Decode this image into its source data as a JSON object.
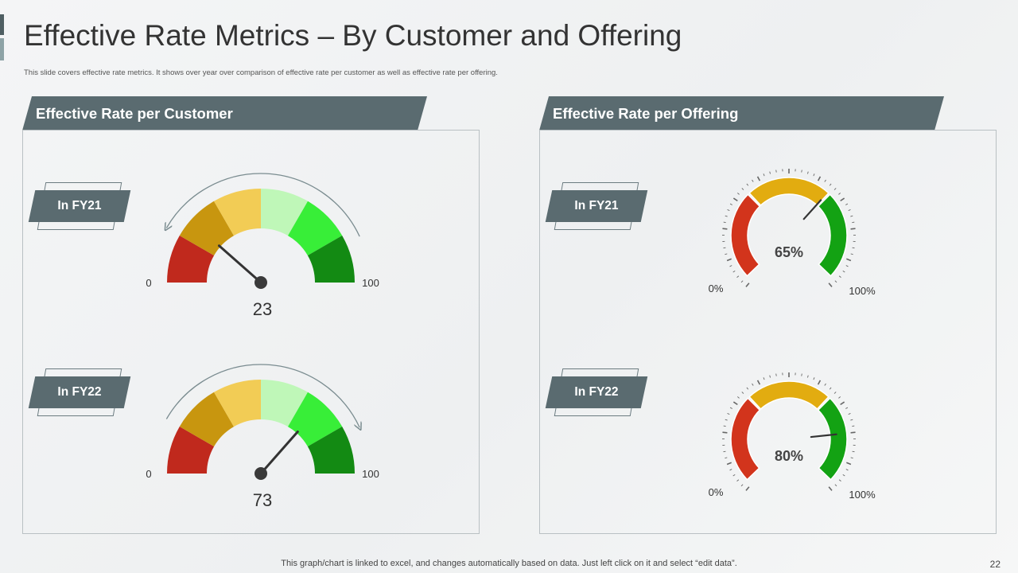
{
  "slide": {
    "title": "Effective Rate Metrics – By Customer and Offering",
    "subtitle": "This slide covers effective rate metrics. It shows over year over comparison of effective rate per customer as well as effective rate per offering.",
    "footer": "This graph/chart is linked to excel,  and changes automatically based on data. Just left click on it and select “edit data”.",
    "page_number": "22"
  },
  "colors": {
    "header_bg": "#5a6b70",
    "accent_dark": "#4f5f63",
    "accent_light": "#8ea3a6",
    "customer_bands": [
      "#c0291d",
      "#c8960f",
      "#f2cc55",
      "#bff7b8",
      "#38ee38",
      "#138a13"
    ],
    "offering_bands": [
      "#d2341c",
      "#e2ac10",
      "#13a213"
    ],
    "needle": "#333333",
    "arrow": "#7a8c90"
  },
  "sections": {
    "customer": {
      "header": "Effective Rate per Customer"
    },
    "offering": {
      "header": "Effective Rate per Offering"
    }
  },
  "labels": {
    "fy21": "In FY21",
    "fy22": "In FY22"
  },
  "chart_data": [
    {
      "type": "gauge",
      "title": "Effective Rate per Customer – In FY21",
      "value": 23,
      "value_label": "23",
      "min": 0,
      "max": 100,
      "min_label": "0",
      "max_label": "100",
      "bands": 6,
      "arrow_direction": "counter-clockwise"
    },
    {
      "type": "gauge",
      "title": "Effective Rate per Customer – In FY22",
      "value": 73,
      "value_label": "73",
      "min": 0,
      "max": 100,
      "min_label": "0",
      "max_label": "100",
      "bands": 6,
      "arrow_direction": "clockwise"
    },
    {
      "type": "gauge",
      "title": "Effective Rate per Offering – In FY21",
      "value": 65,
      "value_label": "65%",
      "min": 0,
      "max": 100,
      "min_label": "0%",
      "max_label": "100%",
      "bands": 3
    },
    {
      "type": "gauge",
      "title": "Effective Rate per Offering – In FY22",
      "value": 80,
      "value_label": "80%",
      "min": 0,
      "max": 100,
      "min_label": "0%",
      "max_label": "100%",
      "bands": 3
    }
  ]
}
